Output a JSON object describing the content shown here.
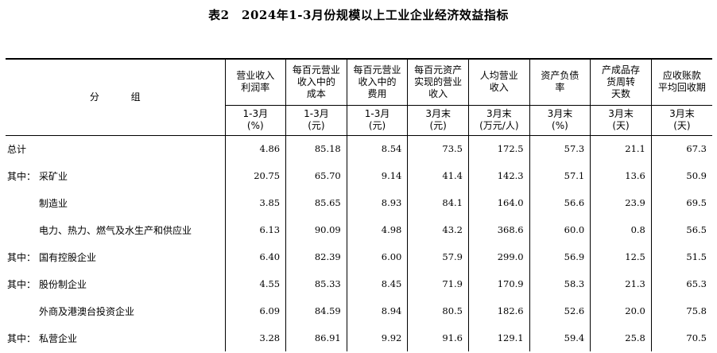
{
  "title": "表2　2024年1-3月份规模以上工业企业经济效益指标",
  "group_header": "分  组",
  "columns": [
    {
      "name": "营业收入\n利润率",
      "period": "1-3月",
      "unit": "(%)"
    },
    {
      "name": "每百元营业\n收入中的\n成本",
      "period": "1-3月",
      "unit": "(元)"
    },
    {
      "name": "每百元营业\n收入中的\n费用",
      "period": "1-3月",
      "unit": "(元)"
    },
    {
      "name": "每百元资产\n实现的营业\n收入",
      "period": "3月末",
      "unit": "(元)"
    },
    {
      "name": "人均营业\n收入",
      "period": "3月末",
      "unit": "(万元/人)"
    },
    {
      "name": "资产负债\n率",
      "period": "3月末",
      "unit": "(%)"
    },
    {
      "name": "产成品存\n货周转\n天数",
      "period": "3月末",
      "unit": "(天)"
    },
    {
      "name": "应收账款\n平均回收期",
      "period": "3月末",
      "unit": "(天)"
    }
  ],
  "rows": [
    {
      "prefix": "",
      "label": "总计",
      "values": [
        "4.86",
        "85.18",
        "8.54",
        "73.5",
        "172.5",
        "57.3",
        "21.1",
        "67.3"
      ]
    },
    {
      "prefix": "其中：",
      "label": "采矿业",
      "values": [
        "20.75",
        "65.70",
        "9.14",
        "41.4",
        "142.3",
        "57.1",
        "13.6",
        "50.9"
      ]
    },
    {
      "prefix": "",
      "label": "制造业",
      "values": [
        "3.85",
        "85.65",
        "8.93",
        "84.1",
        "164.0",
        "56.6",
        "23.9",
        "69.5"
      ]
    },
    {
      "prefix": "",
      "label": "电力、热力、燃气及水生产和供应业",
      "values": [
        "6.13",
        "90.09",
        "4.98",
        "43.2",
        "368.6",
        "60.0",
        "0.8",
        "56.5"
      ]
    },
    {
      "prefix": "其中：",
      "label": "国有控股企业",
      "values": [
        "6.40",
        "82.39",
        "6.00",
        "57.9",
        "299.0",
        "56.9",
        "12.5",
        "51.5"
      ]
    },
    {
      "prefix": "其中：",
      "label": "股份制企业",
      "values": [
        "4.55",
        "85.33",
        "8.45",
        "71.9",
        "170.9",
        "58.3",
        "21.3",
        "65.3"
      ]
    },
    {
      "prefix": "",
      "label": "外商及港澳台投资企业",
      "values": [
        "6.09",
        "84.59",
        "8.94",
        "80.5",
        "182.6",
        "52.6",
        "20.0",
        "75.8"
      ]
    },
    {
      "prefix": "其中：",
      "label": "私营企业",
      "values": [
        "3.28",
        "86.91",
        "9.92",
        "91.6",
        "129.1",
        "59.4",
        "25.8",
        "70.5"
      ]
    }
  ]
}
